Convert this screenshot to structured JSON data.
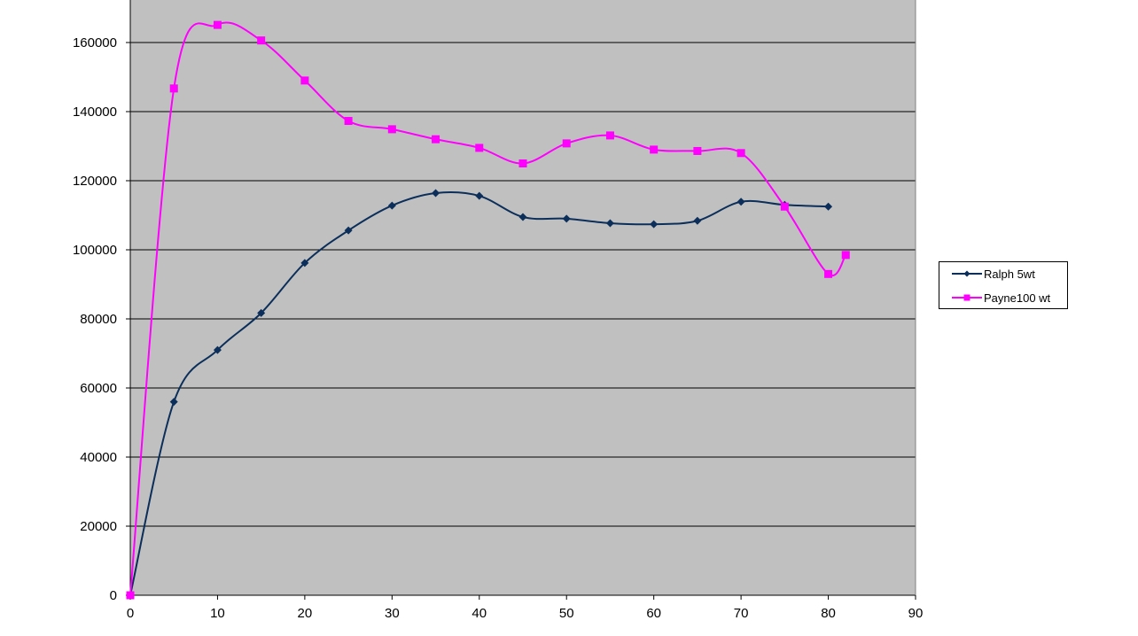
{
  "chart_data": {
    "type": "line",
    "title": "",
    "xlabel": "",
    "ylabel": "",
    "xlim": [
      0,
      90
    ],
    "ylim": [
      0,
      170000
    ],
    "x_ticks": [
      "0",
      "10",
      "20",
      "30",
      "40",
      "50",
      "60",
      "70",
      "80",
      "90"
    ],
    "y_ticks": [
      "0",
      "20000",
      "40000",
      "60000",
      "80000",
      "100000",
      "120000",
      "140000",
      "160000"
    ],
    "grid": "horizontal",
    "plot_background": "#C0C0C0",
    "legend_position": "right",
    "series": [
      {
        "name": "Ralph 5wt",
        "color": "#0B2F5A",
        "marker": "diamond",
        "x": [
          0,
          5,
          10,
          15,
          20,
          25,
          30,
          35,
          40,
          45,
          50,
          55,
          60,
          65,
          70,
          75,
          80
        ],
        "y": [
          0,
          56000,
          71000,
          81700,
          96200,
          105600,
          112800,
          116400,
          115600,
          109500,
          109000,
          107700,
          107400,
          108400,
          113900,
          113000,
          112500
        ]
      },
      {
        "name": "Payne100 wt",
        "color": "#FF00FF",
        "marker": "square",
        "x": [
          0,
          5,
          10,
          15,
          20,
          25,
          30,
          35,
          40,
          45,
          50,
          55,
          60,
          65,
          70,
          75,
          80,
          82
        ],
        "y": [
          0,
          146700,
          165100,
          160600,
          149000,
          137300,
          134900,
          132000,
          129500,
          125000,
          130800,
          133100,
          129000,
          128600,
          128000,
          112500,
          93000,
          98500
        ]
      }
    ]
  }
}
